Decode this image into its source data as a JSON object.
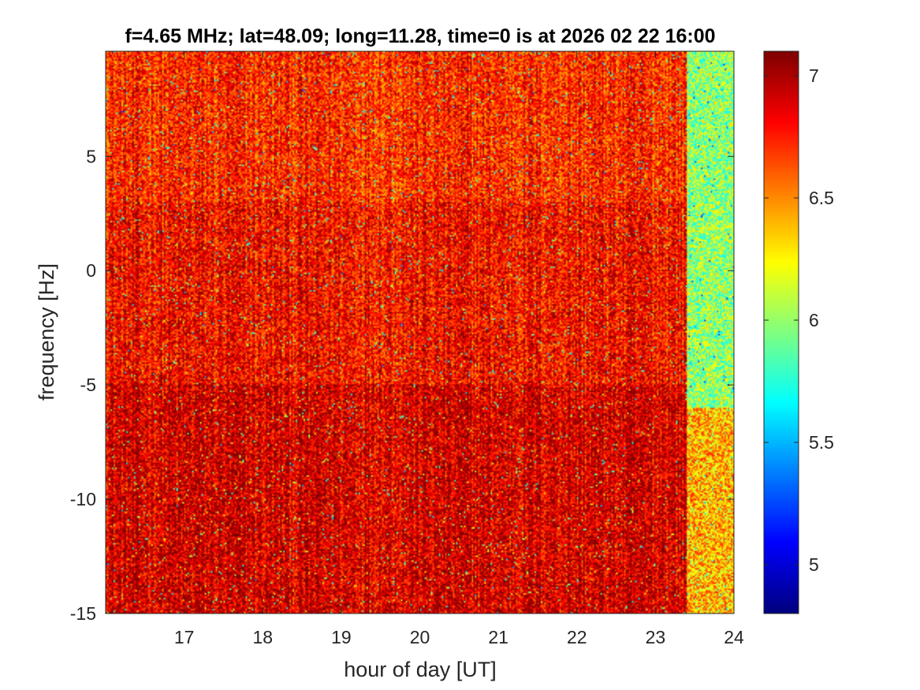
{
  "chart_data": {
    "type": "heatmap",
    "title": "f=4.65 MHz;  lat=48.09; long=11.28, time=0 is at 2026 02 22 16:00",
    "xlabel": "hour of day [UT]",
    "ylabel": "frequency [Hz]",
    "xlim": [
      16,
      24
    ],
    "ylim": [
      -15,
      9.6
    ],
    "xticks": [
      17,
      18,
      19,
      20,
      21,
      22,
      23,
      24
    ],
    "xtick_labels": [
      "17",
      "18",
      "19",
      "20",
      "21",
      "22",
      "23",
      "24"
    ],
    "yticks": [
      -15,
      -10,
      -5,
      0,
      5
    ],
    "ytick_labels": [
      "-15",
      "-10",
      "-5",
      "0",
      "5"
    ],
    "colorbar": {
      "colormap": "jet",
      "clim": [
        4.8,
        7.1
      ],
      "ticks": [
        5,
        5.5,
        6,
        6.5,
        7
      ],
      "tick_labels": [
        "5",
        "5.5",
        "6",
        "6.5",
        "7"
      ]
    },
    "regions": [
      {
        "x_range": [
          16,
          23.4
        ],
        "y_range": [
          -15,
          9.6
        ],
        "typical_value": 6.8,
        "note": "strong (red) over the full band"
      },
      {
        "x_range": [
          23.4,
          24
        ],
        "y_range": [
          -6,
          9.6
        ],
        "typical_value": 6.0,
        "note": "weaker (green-yellow)"
      },
      {
        "x_range": [
          23.4,
          24
        ],
        "y_range": [
          -15,
          -6
        ],
        "typical_value": 6.4,
        "note": "mixed orange/yellow"
      }
    ],
    "grid": false
  }
}
